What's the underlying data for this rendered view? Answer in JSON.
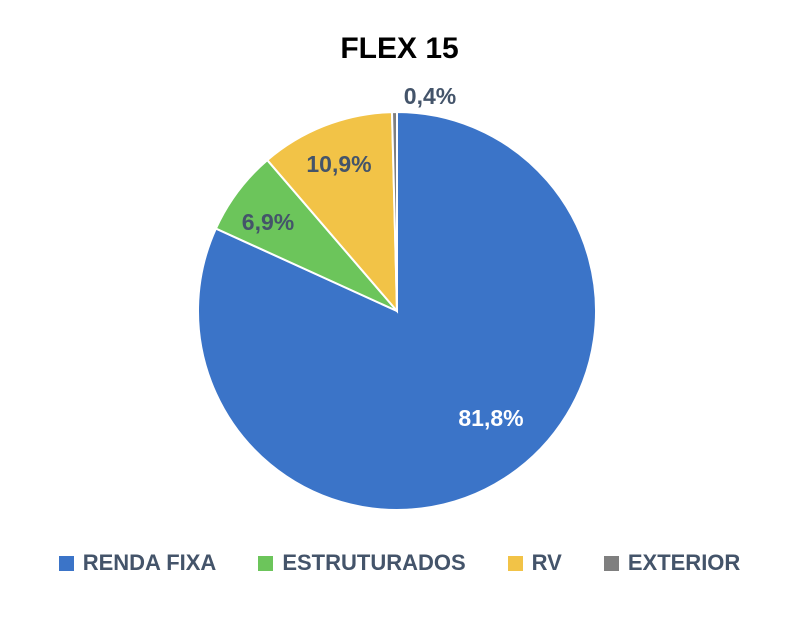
{
  "chart_data": {
    "type": "pie",
    "title": "FLEX 15",
    "slices": [
      {
        "name": "RENDA FIXA",
        "value": 81.8,
        "label": "81,8%",
        "color": "#3b74c8",
        "label_color": "#ffffff"
      },
      {
        "name": "ESTRUTURADOS",
        "value": 6.9,
        "label": "6,9%",
        "color": "#6cc55b",
        "label_color": "#44546a"
      },
      {
        "name": "RV",
        "value": 10.9,
        "label": "10,9%",
        "color": "#f2c347",
        "label_color": "#44546a"
      },
      {
        "name": "EXTERIOR",
        "value": 0.4,
        "label": "0,4%",
        "color": "#7f7f7f",
        "label_color": "#44546a"
      }
    ],
    "legend_position": "bottom"
  }
}
